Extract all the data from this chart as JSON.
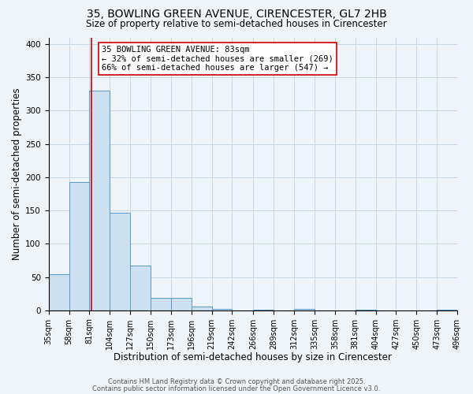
{
  "title_line1": "35, BOWLING GREEN AVENUE, CIRENCESTER, GL7 2HB",
  "title_line2": "Size of property relative to semi-detached houses in Cirencester",
  "xlabel": "Distribution of semi-detached houses by size in Cirencester",
  "ylabel": "Number of semi-detached properties",
  "bar_left_edges": [
    35,
    58,
    81,
    104,
    127,
    150,
    173,
    196,
    219,
    242,
    266,
    289,
    312,
    335,
    358,
    381,
    404,
    427,
    450,
    473
  ],
  "bar_heights": [
    54,
    193,
    330,
    147,
    67,
    19,
    19,
    6,
    2,
    0,
    1,
    0,
    2,
    0,
    0,
    1,
    0,
    0,
    0,
    1
  ],
  "bin_width": 23,
  "bar_color": "#cce0f0",
  "bar_edge_color": "#5599cc",
  "tick_labels": [
    "35sqm",
    "58sqm",
    "81sqm",
    "104sqm",
    "127sqm",
    "150sqm",
    "173sqm",
    "196sqm",
    "219sqm",
    "242sqm",
    "266sqm",
    "289sqm",
    "312sqm",
    "335sqm",
    "358sqm",
    "381sqm",
    "404sqm",
    "427sqm",
    "450sqm",
    "473sqm",
    "496sqm"
  ],
  "tick_positions": [
    35,
    58,
    81,
    104,
    127,
    150,
    173,
    196,
    219,
    242,
    266,
    289,
    312,
    335,
    358,
    381,
    404,
    427,
    450,
    473,
    496
  ],
  "vline_x": 83,
  "vline_color": "#cc0000",
  "ylim": [
    0,
    410
  ],
  "xlim": [
    35,
    496
  ],
  "annotation_title": "35 BOWLING GREEN AVENUE: 83sqm",
  "annotation_line1": "← 32% of semi-detached houses are smaller (269)",
  "annotation_line2": "66% of semi-detached houses are larger (547) →",
  "grid_color": "#c8d8e8",
  "bg_color": "#eef4fa",
  "footer1": "Contains HM Land Registry data © Crown copyright and database right 2025.",
  "footer2": "Contains public sector information licensed under the Open Government Licence v3.0.",
  "title_fontsize": 10,
  "subtitle_fontsize": 8.5,
  "axis_label_fontsize": 8.5,
  "tick_fontsize": 7
}
